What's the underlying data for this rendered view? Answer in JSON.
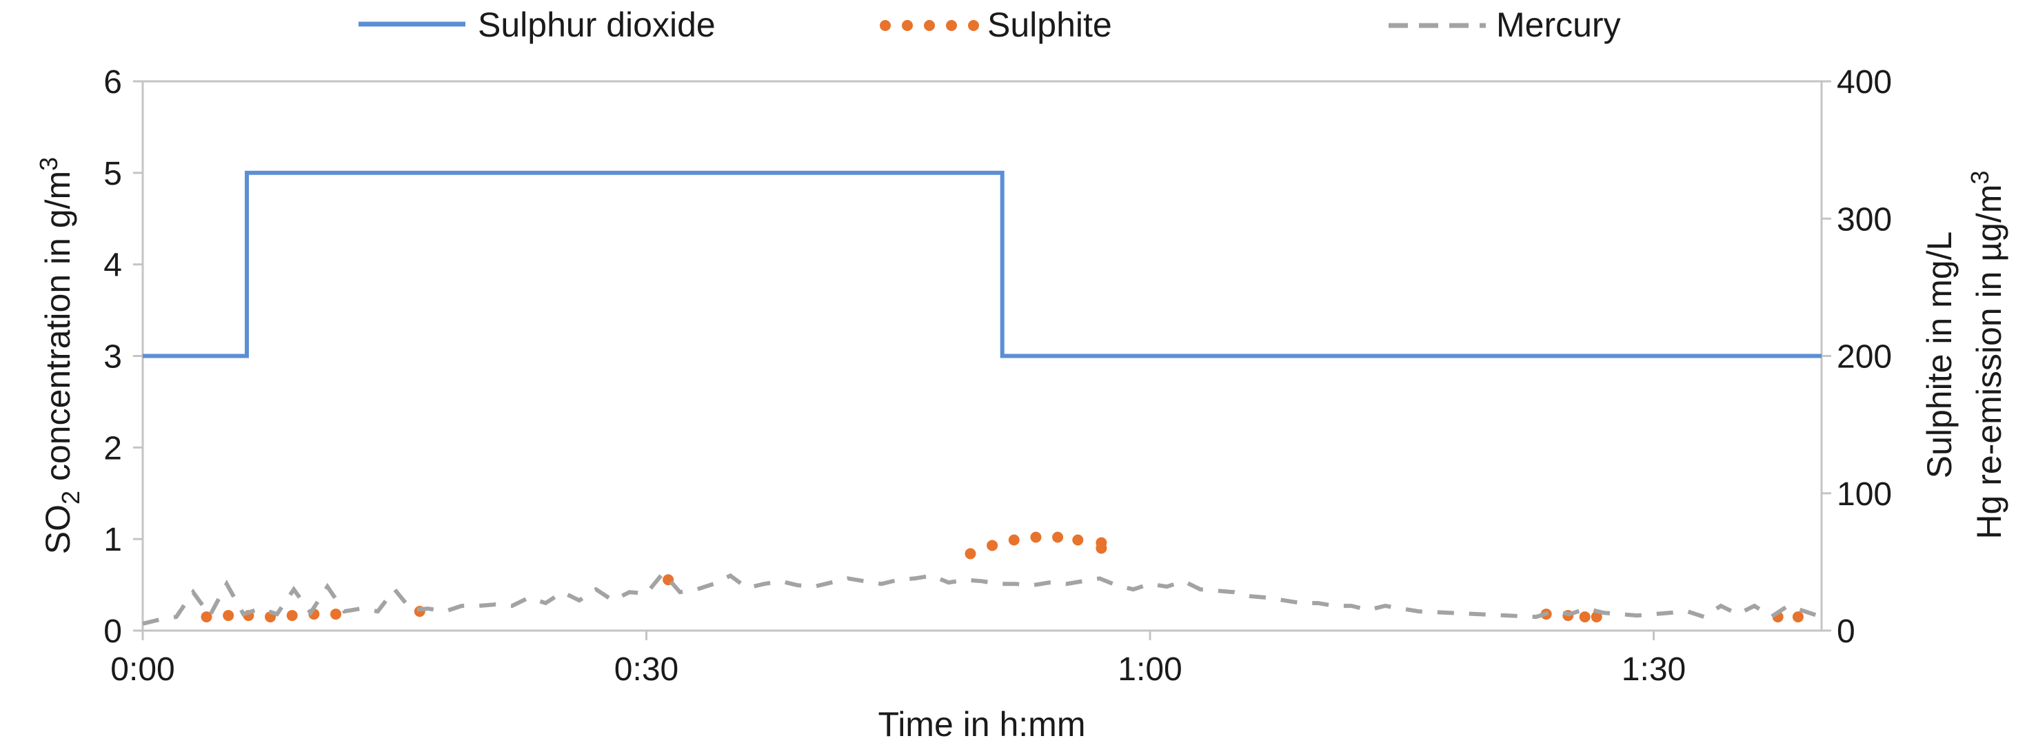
{
  "chart_data": {
    "type": "line",
    "xlabel": "Time in h:mm",
    "ylabel_left": {
      "prefix": "SO",
      "sub": "2",
      "mid": " concentration in g/m",
      "sup": "3"
    },
    "ylabel_right_line1": "Sulphite in mg/L",
    "ylabel_right_line2": {
      "main": "Hg re-emission in µg/m",
      "sup": "3"
    },
    "x_unit": "minutes",
    "xlim": [
      0,
      100
    ],
    "x_ticks": [
      {
        "value": 0,
        "label": "0:00"
      },
      {
        "value": 30,
        "label": "0:30"
      },
      {
        "value": 60,
        "label": "1:00"
      },
      {
        "value": 90,
        "label": "1:30"
      }
    ],
    "y_left": {
      "lim": [
        0,
        6
      ],
      "ticks": [
        "0",
        "1",
        "2",
        "3",
        "4",
        "5",
        "6"
      ]
    },
    "y_right": {
      "lim": [
        0,
        400
      ],
      "ticks": [
        "0",
        "100",
        "200",
        "300",
        "400"
      ]
    },
    "legend_position": "top",
    "grid": false,
    "series": [
      {
        "name": "Sulphur dioxide",
        "axis": "left",
        "style": "solid",
        "color": "#5b8fd4",
        "points": [
          [
            0,
            3
          ],
          [
            6.2,
            3
          ],
          [
            6.2,
            5
          ],
          [
            51.2,
            5
          ],
          [
            51.2,
            3
          ],
          [
            100,
            3
          ]
        ]
      },
      {
        "name": "Sulphite",
        "axis": "right",
        "style": "dotted",
        "color": "#e8732c",
        "points": [
          [
            3.8,
            10
          ],
          [
            5.1,
            11
          ],
          [
            6.3,
            11
          ],
          [
            7.6,
            10
          ],
          [
            8.9,
            11
          ],
          [
            10.2,
            12
          ],
          [
            11.5,
            12
          ],
          [
            16.5,
            14
          ],
          [
            31.3,
            37
          ],
          [
            49.3,
            56
          ],
          [
            50.6,
            62
          ],
          [
            51.9,
            66
          ],
          [
            53.2,
            68
          ],
          [
            54.5,
            68
          ],
          [
            55.7,
            66
          ],
          [
            57.1,
            64
          ],
          [
            57.1,
            60
          ],
          [
            83.6,
            12
          ],
          [
            84.9,
            11
          ],
          [
            85.9,
            10
          ],
          [
            86.6,
            10
          ],
          [
            97.4,
            10
          ],
          [
            98.6,
            10
          ]
        ]
      },
      {
        "name": "Mercury",
        "axis": "right",
        "style": "dashed",
        "color": "#a3a3a3",
        "points": [
          [
            0,
            5
          ],
          [
            1,
            8
          ],
          [
            2,
            10
          ],
          [
            3,
            28
          ],
          [
            4,
            11
          ],
          [
            5,
            34
          ],
          [
            6,
            12
          ],
          [
            7,
            16
          ],
          [
            8,
            12
          ],
          [
            9,
            30
          ],
          [
            10,
            13
          ],
          [
            11,
            32
          ],
          [
            12,
            14
          ],
          [
            13,
            16
          ],
          [
            14,
            14
          ],
          [
            15,
            30
          ],
          [
            16,
            15
          ],
          [
            17,
            16
          ],
          [
            18,
            14
          ],
          [
            19,
            18
          ],
          [
            20,
            18
          ],
          [
            21,
            19
          ],
          [
            22,
            18
          ],
          [
            23,
            24
          ],
          [
            24,
            20
          ],
          [
            25,
            28
          ],
          [
            26,
            22
          ],
          [
            27,
            30
          ],
          [
            28,
            22
          ],
          [
            29,
            28
          ],
          [
            30,
            27
          ],
          [
            31,
            42
          ],
          [
            32,
            28
          ],
          [
            33,
            30
          ],
          [
            34,
            34
          ],
          [
            35,
            40
          ],
          [
            36,
            31
          ],
          [
            37,
            34
          ],
          [
            38,
            36
          ],
          [
            39,
            33
          ],
          [
            40,
            32
          ],
          [
            41,
            35
          ],
          [
            42,
            38
          ],
          [
            43,
            36
          ],
          [
            44,
            34
          ],
          [
            45,
            37
          ],
          [
            46,
            38
          ],
          [
            47,
            40
          ],
          [
            48,
            35
          ],
          [
            49,
            37
          ],
          [
            50,
            36
          ],
          [
            51,
            34
          ],
          [
            52,
            34
          ],
          [
            53,
            33
          ],
          [
            54,
            35
          ],
          [
            55,
            34
          ],
          [
            56,
            36
          ],
          [
            57,
            38
          ],
          [
            58,
            33
          ],
          [
            59,
            30
          ],
          [
            60,
            34
          ],
          [
            61,
            32
          ],
          [
            62,
            36
          ],
          [
            63,
            30
          ],
          [
            64,
            29
          ],
          [
            65,
            28
          ],
          [
            66,
            25
          ],
          [
            67,
            24
          ],
          [
            68,
            22
          ],
          [
            69,
            20
          ],
          [
            70,
            20
          ],
          [
            71,
            18
          ],
          [
            72,
            18
          ],
          [
            73,
            15
          ],
          [
            74,
            18
          ],
          [
            75,
            16
          ],
          [
            76,
            14
          ],
          [
            83,
            10
          ],
          [
            84,
            14
          ],
          [
            85,
            12
          ],
          [
            86,
            16
          ],
          [
            87,
            13
          ],
          [
            88,
            12
          ],
          [
            89,
            11
          ],
          [
            90,
            12
          ],
          [
            91,
            13
          ],
          [
            92,
            14
          ],
          [
            93,
            10
          ],
          [
            94,
            18
          ],
          [
            95,
            12
          ],
          [
            96,
            18
          ],
          [
            97,
            10
          ],
          [
            98,
            18
          ],
          [
            99,
            14
          ],
          [
            100,
            10
          ]
        ]
      }
    ]
  }
}
